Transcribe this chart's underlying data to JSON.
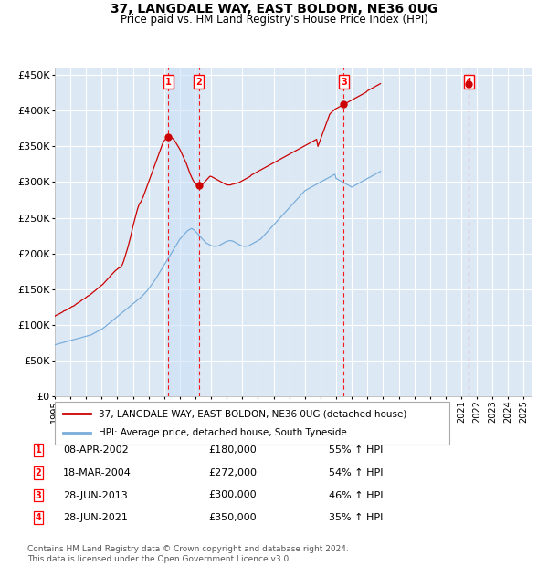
{
  "title": "37, LANGDALE WAY, EAST BOLDON, NE36 0UG",
  "subtitle": "Price paid vs. HM Land Registry's House Price Index (HPI)",
  "ylim": [
    0,
    460000
  ],
  "yticks": [
    0,
    50000,
    100000,
    150000,
    200000,
    250000,
    300000,
    350000,
    400000,
    450000
  ],
  "xlim_start": 1995.0,
  "xlim_end": 2025.5,
  "background_color": "#dce9f5",
  "grid_color": "#ffffff",
  "legend_label_red": "37, LANGDALE WAY, EAST BOLDON, NE36 0UG (detached house)",
  "legend_label_blue": "HPI: Average price, detached house, South Tyneside",
  "footer": "Contains HM Land Registry data © Crown copyright and database right 2024.\nThis data is licensed under the Open Government Licence v3.0.",
  "sales": [
    {
      "num": 1,
      "date": "08-APR-2002",
      "price": 180000,
      "pct": "55%",
      "x": 2002.27
    },
    {
      "num": 2,
      "date": "18-MAR-2004",
      "price": 272000,
      "pct": "54%",
      "x": 2004.21
    },
    {
      "num": 3,
      "date": "28-JUN-2013",
      "price": 300000,
      "pct": "46%",
      "x": 2013.49
    },
    {
      "num": 4,
      "date": "28-JUN-2021",
      "price": 350000,
      "pct": "35%",
      "x": 2021.49
    }
  ],
  "red_line_x_start": 1995.0,
  "red_line_monthly_y": [
    112000,
    113500,
    114000,
    115000,
    116000,
    117000,
    118000,
    119500,
    120000,
    121000,
    122000,
    123000,
    124000,
    125500,
    126000,
    127000,
    128500,
    130000,
    131000,
    132000,
    133500,
    135000,
    136000,
    137000,
    138500,
    140000,
    141000,
    142000,
    143500,
    145000,
    146500,
    148000,
    149500,
    151000,
    152500,
    154000,
    155500,
    157000,
    159000,
    161000,
    163000,
    165000,
    167000,
    169500,
    171000,
    173000,
    175000,
    176500,
    178000,
    179500,
    180000,
    182000,
    185000,
    190000,
    196000,
    202000,
    208000,
    215000,
    222000,
    230000,
    238000,
    245000,
    252000,
    259000,
    265000,
    270000,
    272000,
    276000,
    280000,
    285000,
    290000,
    295000,
    300000,
    305000,
    310000,
    315000,
    320000,
    325000,
    330000,
    335000,
    340000,
    345000,
    350000,
    355000,
    358000,
    360000,
    362000,
    363000,
    364000,
    363000,
    362000,
    360000,
    358000,
    355000,
    352000,
    349000,
    346000,
    342000,
    338000,
    334000,
    330000,
    326000,
    321000,
    316000,
    311000,
    307000,
    303000,
    300000,
    298000,
    296000,
    295000,
    295000,
    296000,
    297000,
    298000,
    300000,
    302000,
    304000,
    306000,
    308000,
    308000,
    307000,
    306000,
    305000,
    304000,
    303000,
    302000,
    301000,
    300000,
    299000,
    298000,
    297000,
    296000,
    296000,
    296000,
    296000,
    297000,
    297000,
    298000,
    298000,
    299000,
    299000,
    300000,
    301000,
    302000,
    303000,
    304000,
    305000,
    306000,
    307000,
    308000,
    310000,
    311000,
    312000,
    313000,
    314000,
    315000,
    316000,
    317000,
    318000,
    319000,
    320000,
    321000,
    322000,
    323000,
    324000,
    325000,
    326000,
    327000,
    328000,
    329000,
    330000,
    331000,
    332000,
    333000,
    334000,
    335000,
    336000,
    337000,
    338000,
    339000,
    340000,
    341000,
    342000,
    343000,
    344000,
    345000,
    346000,
    347000,
    348000,
    349000,
    350000,
    351000,
    352000,
    353000,
    354000,
    355000,
    356000,
    357000,
    358000,
    359000,
    360000,
    350000,
    355000,
    360000,
    365000,
    370000,
    375000,
    380000,
    385000,
    390000,
    395000,
    397000,
    399000,
    400000,
    402000,
    403000,
    404000,
    405000,
    406000,
    407000,
    408000,
    409000,
    410000,
    411000,
    412000,
    413000,
    414000,
    415000,
    416000,
    417000,
    418000,
    419000,
    420000,
    421000,
    422000,
    423000,
    424000,
    425000,
    426000,
    428000,
    429000,
    430000,
    431000,
    432000,
    433000,
    434000,
    435000,
    436000,
    437000,
    438000
  ],
  "blue_line_x_start": 1995.0,
  "blue_line_monthly_y": [
    72000,
    72500,
    73000,
    73500,
    74000,
    74500,
    75000,
    75500,
    76000,
    76500,
    77000,
    77500,
    78000,
    78500,
    79000,
    79500,
    80000,
    80500,
    81000,
    81500,
    82000,
    82500,
    83000,
    83500,
    84000,
    84500,
    85000,
    85500,
    86000,
    87000,
    88000,
    89000,
    90000,
    91000,
    92000,
    93000,
    94000,
    95000,
    96500,
    98000,
    99500,
    101000,
    102500,
    104000,
    105500,
    107000,
    108500,
    110000,
    111500,
    113000,
    114500,
    116000,
    117500,
    119000,
    120500,
    122000,
    123500,
    125000,
    126500,
    128000,
    129500,
    131000,
    132500,
    134000,
    135500,
    137000,
    138500,
    140000,
    142000,
    144000,
    146000,
    148000,
    150500,
    153000,
    155500,
    158000,
    160500,
    163000,
    166000,
    169000,
    172000,
    175000,
    178000,
    181000,
    184000,
    187000,
    190000,
    193000,
    196000,
    199000,
    202000,
    205000,
    208000,
    211000,
    214000,
    217000,
    220000,
    222000,
    224000,
    226000,
    228000,
    230000,
    232000,
    233000,
    234000,
    235000,
    234000,
    233000,
    231000,
    229000,
    227000,
    225000,
    223000,
    221000,
    219000,
    217000,
    215000,
    214000,
    213000,
    212000,
    211000,
    210500,
    210000,
    210000,
    210000,
    210500,
    211000,
    212000,
    213000,
    214000,
    215000,
    216000,
    217000,
    217500,
    218000,
    218000,
    217500,
    217000,
    216000,
    215000,
    214000,
    213000,
    212000,
    211000,
    210500,
    210000,
    210000,
    210000,
    210500,
    211000,
    212000,
    213000,
    214000,
    215000,
    216000,
    217000,
    218000,
    219000,
    220000,
    222000,
    224000,
    226000,
    228000,
    230000,
    232000,
    234000,
    236000,
    238000,
    240000,
    242000,
    244000,
    246000,
    248000,
    250000,
    252000,
    254000,
    256000,
    258000,
    260000,
    262000,
    264000,
    266000,
    268000,
    270000,
    272000,
    274000,
    276000,
    278000,
    280000,
    282000,
    284000,
    286000,
    288000,
    289000,
    290000,
    291000,
    292000,
    293000,
    294000,
    295000,
    296000,
    297000,
    298000,
    299000,
    300000,
    301000,
    302000,
    303000,
    304000,
    305000,
    306000,
    307000,
    308000,
    309000,
    310000,
    311000,
    305000,
    304000,
    303000,
    302000,
    301000,
    300000,
    299000,
    298000,
    297000,
    296000,
    295000,
    294000,
    293000,
    294000,
    295000,
    296000,
    297000,
    298000,
    299000,
    300000,
    301000,
    302000,
    303000,
    304000,
    305000,
    306000,
    307000,
    308000,
    309000,
    310000,
    311000,
    312000,
    313000,
    314000,
    315000
  ]
}
